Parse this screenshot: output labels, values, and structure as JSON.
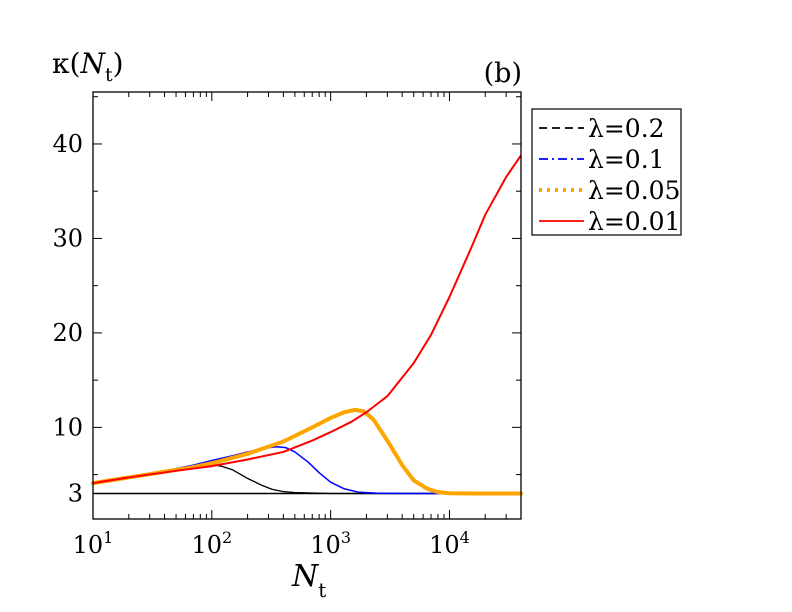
{
  "chart_data": {
    "type": "line",
    "panel_label": "(b)",
    "title": "",
    "ylabel": "κ(N_t)",
    "ylabel_parts": {
      "symbol": "κ(",
      "var": "N",
      "sub": "t",
      "close": ")"
    },
    "xlabel_parts": {
      "var": "N",
      "sub": "t"
    },
    "x_scale": "log",
    "xlim": [
      10,
      40000
    ],
    "ylim": [
      0.3,
      45.5
    ],
    "x_ticks": [
      {
        "value": 10,
        "base": "10",
        "exp": "1"
      },
      {
        "value": 100,
        "base": "10",
        "exp": "2"
      },
      {
        "value": 1000,
        "base": "10",
        "exp": "3"
      },
      {
        "value": 10000,
        "base": "10",
        "exp": "4"
      }
    ],
    "y_ticks": [
      3,
      10,
      20,
      30,
      40
    ],
    "reference_line": {
      "y": 3
    },
    "legend_position": "right",
    "series": [
      {
        "name": "λ=0.2",
        "color": "#000000",
        "dash": "dashed",
        "points": [
          [
            10,
            4.1
          ],
          [
            20,
            4.7
          ],
          [
            40,
            5.3
          ],
          [
            60,
            5.7
          ],
          [
            80,
            5.95
          ],
          [
            100,
            6.05
          ],
          [
            120,
            5.9
          ],
          [
            150,
            5.5
          ],
          [
            200,
            4.6
          ],
          [
            260,
            3.9
          ],
          [
            320,
            3.45
          ],
          [
            400,
            3.2
          ],
          [
            500,
            3.1
          ],
          [
            700,
            3.05
          ],
          [
            1000,
            3.0
          ],
          [
            40000,
            3.0
          ]
        ]
      },
      {
        "name": "λ=0.1",
        "color": "#0000ff",
        "dash": "dashdot",
        "points": [
          [
            10,
            4.1
          ],
          [
            20,
            4.7
          ],
          [
            40,
            5.4
          ],
          [
            70,
            6.0
          ],
          [
            100,
            6.5
          ],
          [
            150,
            7.0
          ],
          [
            200,
            7.4
          ],
          [
            280,
            7.8
          ],
          [
            350,
            7.95
          ],
          [
            420,
            7.85
          ],
          [
            500,
            7.4
          ],
          [
            650,
            6.3
          ],
          [
            800,
            5.2
          ],
          [
            1000,
            4.2
          ],
          [
            1300,
            3.5
          ],
          [
            1700,
            3.15
          ],
          [
            2500,
            3.03
          ],
          [
            4000,
            3.0
          ],
          [
            40000,
            3.0
          ]
        ]
      },
      {
        "name": "λ=0.05",
        "color": "#ffa500",
        "dash": "dotted",
        "points": [
          [
            10,
            4.1
          ],
          [
            20,
            4.7
          ],
          [
            40,
            5.3
          ],
          [
            70,
            5.8
          ],
          [
            100,
            6.2
          ],
          [
            200,
            7.2
          ],
          [
            400,
            8.5
          ],
          [
            700,
            10.0
          ],
          [
            1000,
            11.0
          ],
          [
            1300,
            11.6
          ],
          [
            1600,
            11.85
          ],
          [
            1900,
            11.7
          ],
          [
            2300,
            10.8
          ],
          [
            3000,
            8.6
          ],
          [
            4000,
            6.0
          ],
          [
            5000,
            4.4
          ],
          [
            6500,
            3.5
          ],
          [
            8000,
            3.15
          ],
          [
            10000,
            3.03
          ],
          [
            15000,
            3.0
          ],
          [
            40000,
            3.0
          ]
        ]
      },
      {
        "name": "λ=0.01",
        "color": "#ff0000",
        "dash": "solid",
        "points": [
          [
            10,
            4.1
          ],
          [
            20,
            4.7
          ],
          [
            50,
            5.4
          ],
          [
            100,
            5.9
          ],
          [
            200,
            6.6
          ],
          [
            400,
            7.4
          ],
          [
            700,
            8.6
          ],
          [
            1000,
            9.5
          ],
          [
            1500,
            10.6
          ],
          [
            2000,
            11.6
          ],
          [
            3000,
            13.3
          ],
          [
            5000,
            16.8
          ],
          [
            7000,
            19.8
          ],
          [
            10000,
            23.8
          ],
          [
            15000,
            28.8
          ],
          [
            20000,
            32.5
          ],
          [
            30000,
            36.5
          ],
          [
            40000,
            38.8
          ]
        ]
      }
    ]
  }
}
